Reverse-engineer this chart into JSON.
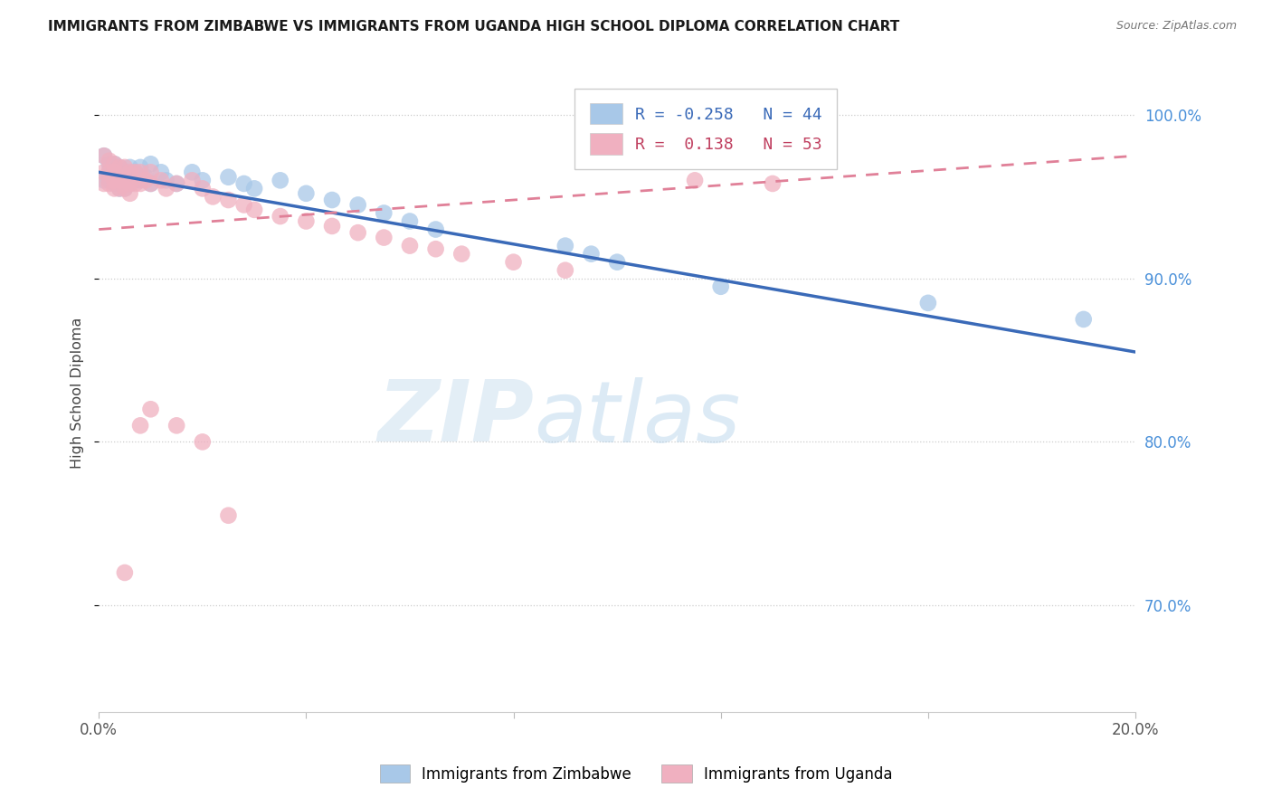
{
  "title": "IMMIGRANTS FROM ZIMBABWE VS IMMIGRANTS FROM UGANDA HIGH SCHOOL DIPLOMA CORRELATION CHART",
  "source": "Source: ZipAtlas.com",
  "ylabel": "High School Diploma",
  "color_zimbabwe": "#a8c8e8",
  "color_uganda": "#f0b0c0",
  "color_trendline_zimbabwe": "#3a6ab8",
  "color_trendline_uganda": "#e08098",
  "xlim": [
    0.0,
    0.2
  ],
  "ylim": [
    0.635,
    1.025
  ],
  "yticks": [
    0.7,
    0.8,
    0.9,
    1.0
  ],
  "ytick_labels": [
    "70.0%",
    "80.0%",
    "90.0%",
    "100.0%"
  ],
  "r_zimbabwe": -0.258,
  "n_zimbabwe": 44,
  "r_uganda": 0.138,
  "n_uganda": 53,
  "zim_line_x0": 0.0,
  "zim_line_y0": 0.965,
  "zim_line_x1": 0.2,
  "zim_line_y1": 0.855,
  "uga_line_x0": 0.0,
  "uga_line_y0": 0.93,
  "uga_line_x1": 0.2,
  "uga_line_y1": 0.975,
  "background_color": "#ffffff",
  "zim_x": [
    0.001,
    0.001,
    0.002,
    0.002,
    0.002,
    0.003,
    0.003,
    0.003,
    0.004,
    0.004,
    0.004,
    0.005,
    0.005,
    0.005,
    0.006,
    0.006,
    0.007,
    0.007,
    0.008,
    0.008,
    0.009,
    0.01,
    0.01,
    0.012,
    0.013,
    0.015,
    0.018,
    0.02,
    0.025,
    0.028,
    0.03,
    0.035,
    0.04,
    0.045,
    0.05,
    0.055,
    0.06,
    0.065,
    0.09,
    0.095,
    0.1,
    0.12,
    0.16,
    0.19
  ],
  "zim_y": [
    0.975,
    0.96,
    0.97,
    0.965,
    0.96,
    0.97,
    0.965,
    0.958,
    0.968,
    0.96,
    0.955,
    0.965,
    0.96,
    0.955,
    0.968,
    0.958,
    0.965,
    0.96,
    0.968,
    0.96,
    0.962,
    0.97,
    0.958,
    0.965,
    0.96,
    0.958,
    0.965,
    0.96,
    0.962,
    0.958,
    0.955,
    0.96,
    0.952,
    0.948,
    0.945,
    0.94,
    0.935,
    0.93,
    0.92,
    0.915,
    0.91,
    0.895,
    0.885,
    0.875
  ],
  "uga_x": [
    0.001,
    0.001,
    0.001,
    0.002,
    0.002,
    0.002,
    0.003,
    0.003,
    0.003,
    0.003,
    0.004,
    0.004,
    0.004,
    0.005,
    0.005,
    0.005,
    0.006,
    0.006,
    0.006,
    0.007,
    0.007,
    0.008,
    0.008,
    0.009,
    0.01,
    0.01,
    0.012,
    0.013,
    0.015,
    0.018,
    0.02,
    0.022,
    0.025,
    0.028,
    0.03,
    0.035,
    0.04,
    0.045,
    0.05,
    0.055,
    0.06,
    0.065,
    0.07,
    0.08,
    0.09,
    0.115,
    0.13,
    0.015,
    0.02,
    0.025,
    0.01,
    0.008,
    0.005
  ],
  "uga_y": [
    0.975,
    0.965,
    0.958,
    0.972,
    0.965,
    0.958,
    0.97,
    0.965,
    0.96,
    0.955,
    0.968,
    0.96,
    0.955,
    0.968,
    0.96,
    0.955,
    0.965,
    0.958,
    0.952,
    0.965,
    0.958,
    0.965,
    0.958,
    0.96,
    0.965,
    0.958,
    0.96,
    0.955,
    0.958,
    0.96,
    0.955,
    0.95,
    0.948,
    0.945,
    0.942,
    0.938,
    0.935,
    0.932,
    0.928,
    0.925,
    0.92,
    0.918,
    0.915,
    0.91,
    0.905,
    0.96,
    0.958,
    0.81,
    0.8,
    0.755,
    0.82,
    0.81,
    0.72
  ]
}
